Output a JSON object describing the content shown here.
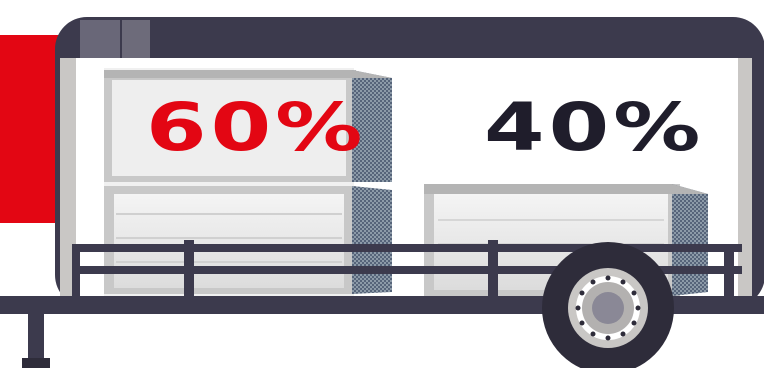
{
  "labels": {
    "left_percentage": "60%",
    "right_percentage": "40%"
  },
  "load_shares": {
    "left_stack_percent": 60,
    "right_unit_percent": 40
  },
  "colors": {
    "brand_red": "#e30613",
    "dark_navy": "#3c3a4d",
    "text_dark": "#1f1d2b",
    "trailer_gray": "#c9c7c5",
    "wheel_dark": "#2e2c3a"
  },
  "icons": {
    "trailer": "utility-trailer-icon",
    "hvac_unit": "hvac-unit-icon",
    "wheel": "wheel-icon"
  }
}
